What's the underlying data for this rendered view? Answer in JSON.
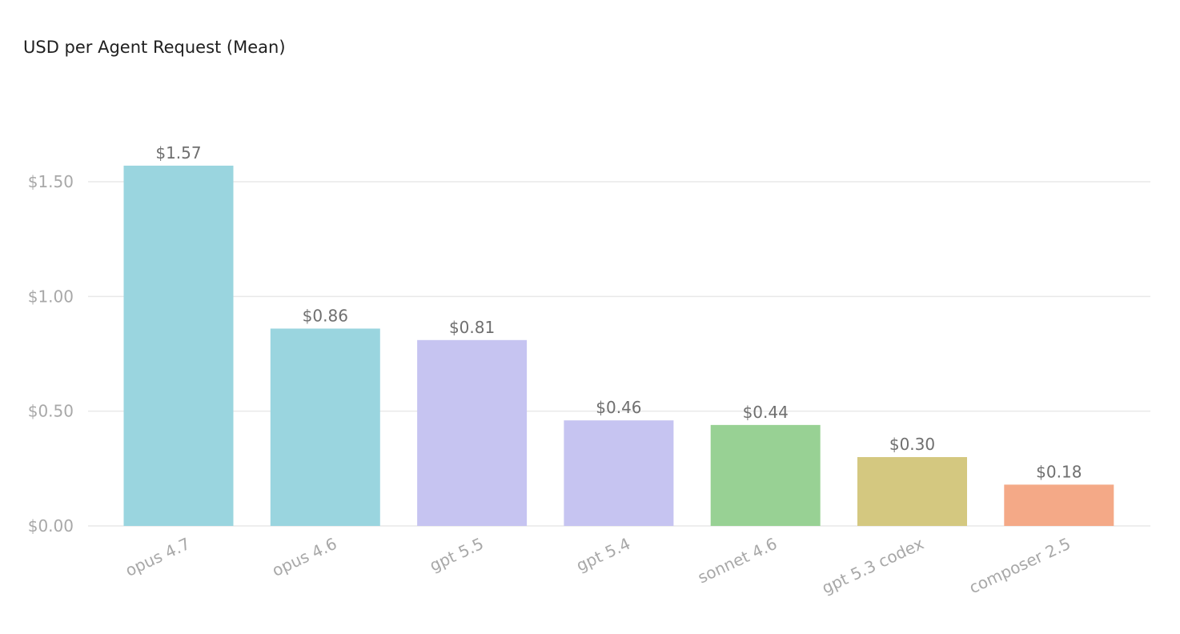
{
  "chart_data": {
    "type": "bar",
    "title": "USD per Agent Request (Mean)",
    "xlabel": "",
    "ylabel": "",
    "categories": [
      "opus 4.7",
      "opus 4.6",
      "gpt 5.5",
      "gpt 5.4",
      "sonnet 4.6",
      "gpt 5.3 codex",
      "composer 2.5"
    ],
    "values": [
      1.57,
      0.86,
      0.81,
      0.46,
      0.44,
      0.3,
      0.18
    ],
    "value_labels": [
      "$1.57",
      "$0.86",
      "$0.81",
      "$0.46",
      "$0.44",
      "$0.30",
      "$0.18"
    ],
    "bar_colors": [
      "#9ad5df",
      "#9ad5df",
      "#c6c4f1",
      "#c6c4f1",
      "#98d194",
      "#d4c880",
      "#f4a987"
    ],
    "ylim": [
      0,
      1.5
    ],
    "yticks": [
      0,
      0.5,
      1.0,
      1.5
    ],
    "ytick_labels": [
      "$0.00",
      "$0.50",
      "$1.00",
      "$1.50"
    ],
    "grid": true,
    "legend": "none"
  }
}
